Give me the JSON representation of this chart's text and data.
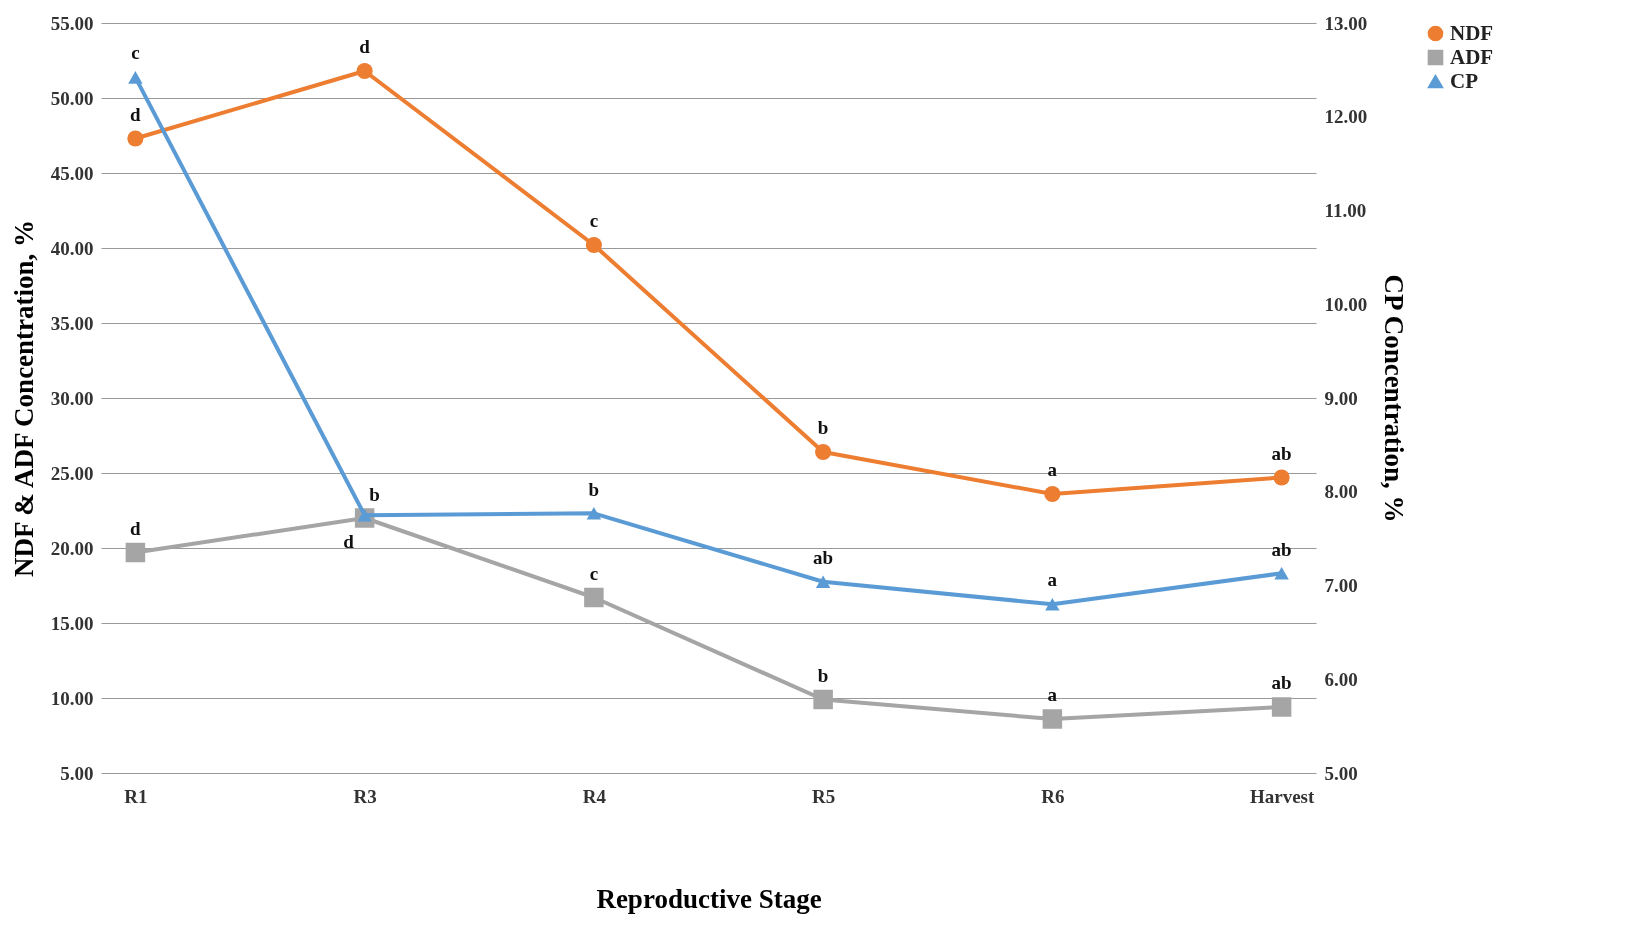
{
  "chart_data": {
    "type": "line",
    "xlabel": "Reproductive Stage",
    "ylabel": "NDF & ADF Concentration, %",
    "y2label": "CP Concentration, %",
    "categories": [
      "R1",
      "R3",
      "R4",
      "R5",
      "R6",
      "Harvest"
    ],
    "ylim": [
      5,
      55
    ],
    "yticks": [
      {
        "value": 5,
        "label": "5.00"
      },
      {
        "value": 10,
        "label": "10.00"
      },
      {
        "value": 15,
        "label": "15.00"
      },
      {
        "value": 20,
        "label": "20.00"
      },
      {
        "value": 25,
        "label": "25.00"
      },
      {
        "value": 30,
        "label": "30.00"
      },
      {
        "value": 35,
        "label": "35.00"
      },
      {
        "value": 40,
        "label": "40.00"
      },
      {
        "value": 45,
        "label": "45.00"
      },
      {
        "value": 50,
        "label": "50.00"
      },
      {
        "value": 55,
        "label": "55.00"
      }
    ],
    "y2lim": [
      5,
      13
    ],
    "y2ticks": [
      {
        "value": 5,
        "label": "5.00"
      },
      {
        "value": 6,
        "label": "6.00"
      },
      {
        "value": 7,
        "label": "7.00"
      },
      {
        "value": 8,
        "label": "8.00"
      },
      {
        "value": 9,
        "label": "9.00"
      },
      {
        "value": 10,
        "label": "10.00"
      },
      {
        "value": 11,
        "label": "11.00"
      },
      {
        "value": 12,
        "label": "12.00"
      },
      {
        "value": 13,
        "label": "13.00"
      }
    ],
    "series": [
      {
        "name": "NDF",
        "color": "#ed7d31",
        "marker": "circle",
        "values": [
          47.3,
          51.8,
          40.2,
          26.4,
          23.6,
          24.7
        ]
      },
      {
        "name": "ADF",
        "color": "#a5a5a5",
        "marker": "square",
        "values": [
          19.7,
          22.0,
          16.7,
          9.9,
          8.6,
          9.4
        ]
      },
      {
        "name": "CP",
        "color": "#5b9bd5",
        "marker": "triangle",
        "axis": "y2",
        "values": [
          12.42,
          7.75,
          7.77,
          7.04,
          6.8,
          7.13
        ]
      }
    ],
    "annotations": [
      {
        "text": "c",
        "x": "R1",
        "y": 51.4
      },
      {
        "text": "d",
        "x": "R1",
        "y": 47.3
      },
      {
        "text": "d",
        "x": "R3",
        "y": 51.8
      },
      {
        "text": "c",
        "x": "R4",
        "y": 40.2
      },
      {
        "text": "b",
        "x": "R5",
        "y": 26.4
      },
      {
        "text": "a",
        "x": "R6",
        "y": 23.6
      },
      {
        "text": "ab",
        "x": "Harvest",
        "y": 24.7
      },
      {
        "text": "d",
        "x": "R1",
        "y": 19.7
      },
      {
        "text": "d",
        "x": "R3",
        "y": 22.0
      },
      {
        "text": "b",
        "x": "R3",
        "y": 22.2
      },
      {
        "text": "b",
        "x": "R4",
        "y": 22.3
      },
      {
        "text": "c",
        "x": "R4",
        "y": 16.7
      },
      {
        "text": "ab",
        "x": "R5",
        "y": 17.75
      },
      {
        "text": "b",
        "x": "R5",
        "y": 9.9
      },
      {
        "text": "a",
        "x": "R6",
        "y": 16.25
      },
      {
        "text": "a",
        "x": "R6",
        "y": 8.6
      },
      {
        "text": "ab",
        "x": "Harvest",
        "y": 18.3
      },
      {
        "text": "ab",
        "x": "Harvest",
        "y": 9.4
      }
    ],
    "grid": "y",
    "legend": "right",
    "line_style": "solid"
  }
}
